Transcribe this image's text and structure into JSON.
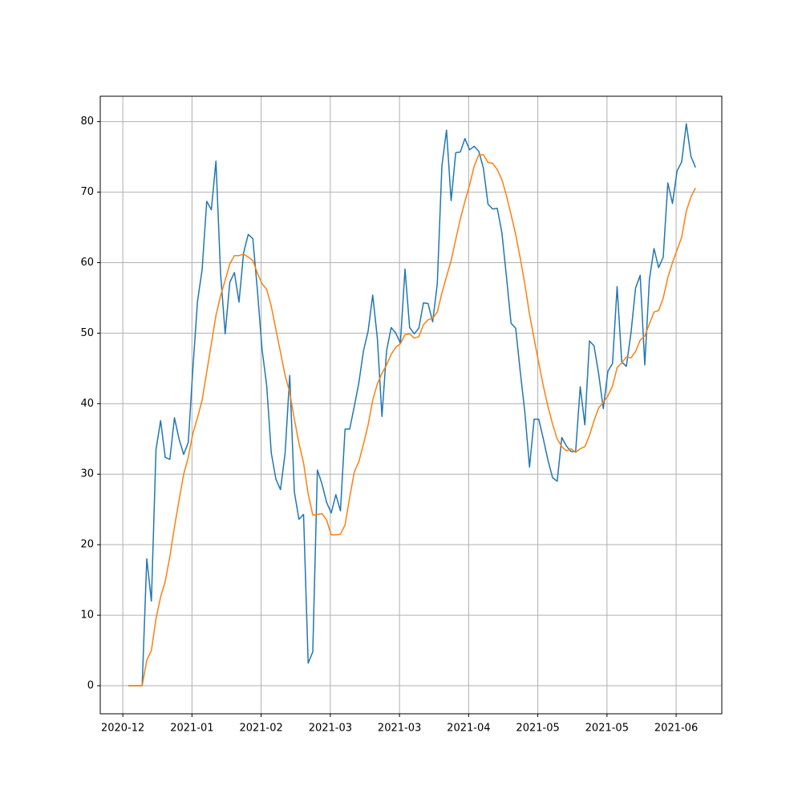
{
  "chart_data": {
    "type": "line",
    "xlim": [
      -6.09,
      128.7
    ],
    "xticks": [
      {
        "value": -1.2,
        "label": "2020-12"
      },
      {
        "value": 13.8,
        "label": "2021-01"
      },
      {
        "value": 28.8,
        "label": "2021-02"
      },
      {
        "value": 43.8,
        "label": "2021-03"
      },
      {
        "value": 58.8,
        "label": "2021-03"
      },
      {
        "value": 73.8,
        "label": "2021-04"
      },
      {
        "value": 88.8,
        "label": "2021-05"
      },
      {
        "value": 103.8,
        "label": "2021-05"
      },
      {
        "value": 118.8,
        "label": "2021-06"
      }
    ],
    "ylim": [
      -3.98,
      83.6
    ],
    "yticks": [
      0,
      10,
      20,
      30,
      40,
      50,
      60,
      70,
      80
    ],
    "grid": true,
    "series": [
      {
        "color": "#1f77b4",
        "values": [
          0,
          0,
          0,
          0,
          18,
          12,
          33.5,
          37.6,
          32.4,
          32.1,
          38,
          35,
          32.8,
          34.5,
          45,
          54.5,
          59,
          68.7,
          67.5,
          74.4,
          58.5,
          49.9,
          57.2,
          58.6,
          54.4,
          61.4,
          64,
          63.4,
          56,
          47.7,
          42.6,
          33,
          29.3,
          27.8,
          33,
          44,
          27.5,
          23.6,
          24.3,
          3.2,
          4.8,
          30.6,
          28.6,
          26,
          24.5,
          27.1,
          24.8,
          36.4,
          36.4,
          39.6,
          43,
          47.5,
          50.3,
          55.4,
          49.3,
          38.2,
          47.5,
          50.8,
          50,
          48.6,
          59.1,
          50.8,
          49.9,
          50.7,
          54.3,
          54.2,
          51.6,
          57,
          73.7,
          78.8,
          68.8,
          75.6,
          75.7,
          77.6,
          76,
          76.5,
          75.8,
          73.4,
          68.3,
          67.6,
          67.7,
          64.3,
          58,
          51.4,
          50.7,
          44.5,
          38.7,
          31,
          37.8,
          37.8,
          35,
          32,
          29.5,
          29,
          35.2,
          34,
          33.2,
          33.2,
          42.4,
          37,
          48.9,
          48.2,
          44.2,
          39.3,
          44.6,
          45.7,
          56.6,
          45.9,
          45.3,
          50,
          56.4,
          58.2,
          45.5,
          57.6,
          62,
          59.3,
          60.8,
          71.3,
          68.4,
          73,
          74.3,
          79.7,
          75.1,
          73.5
        ]
      },
      {
        "color": "#ff7f0e",
        "values": [
          0,
          0,
          0,
          0,
          3.6,
          5,
          9.5,
          12.6,
          14.8,
          18.3,
          22.5,
          26.3,
          30,
          32.4,
          35.8,
          38,
          40.5,
          44.5,
          48.5,
          52.5,
          55.3,
          57.5,
          59.8,
          61,
          61,
          61.2,
          60.8,
          60.3,
          58.5,
          57,
          56.2,
          53.8,
          50.5,
          47.3,
          44,
          41.6,
          37.8,
          34.4,
          31.6,
          27.2,
          24.2,
          24.3,
          24.4,
          23.5,
          21.4,
          21.4,
          21.5,
          22.8,
          26.7,
          30.3,
          31.8,
          34.3,
          37,
          40.5,
          42.8,
          44.3,
          45.5,
          47,
          48,
          48.5,
          49.8,
          49.9,
          49.3,
          49.5,
          51.2,
          51.9,
          52.1,
          53,
          55.7,
          58,
          60.3,
          63.3,
          66.2,
          68.7,
          71,
          73.7,
          75.3,
          75.3,
          74.2,
          74.1,
          73.2,
          71.8,
          69.5,
          66.8,
          64,
          60.6,
          56.9,
          52.7,
          49.2,
          45.8,
          42.5,
          39.6,
          37.1,
          35,
          33.9,
          33.3,
          33.6,
          33.1,
          33.6,
          33.9,
          35.5,
          37.6,
          39.4,
          40.2,
          41.1,
          42.5,
          45.1,
          45.8,
          46.6,
          46.5,
          47.4,
          49,
          49.6,
          51.3,
          53,
          53.2,
          55,
          57.9,
          60,
          61.8,
          63.6,
          67.3,
          69.3,
          70.6
        ]
      }
    ]
  }
}
